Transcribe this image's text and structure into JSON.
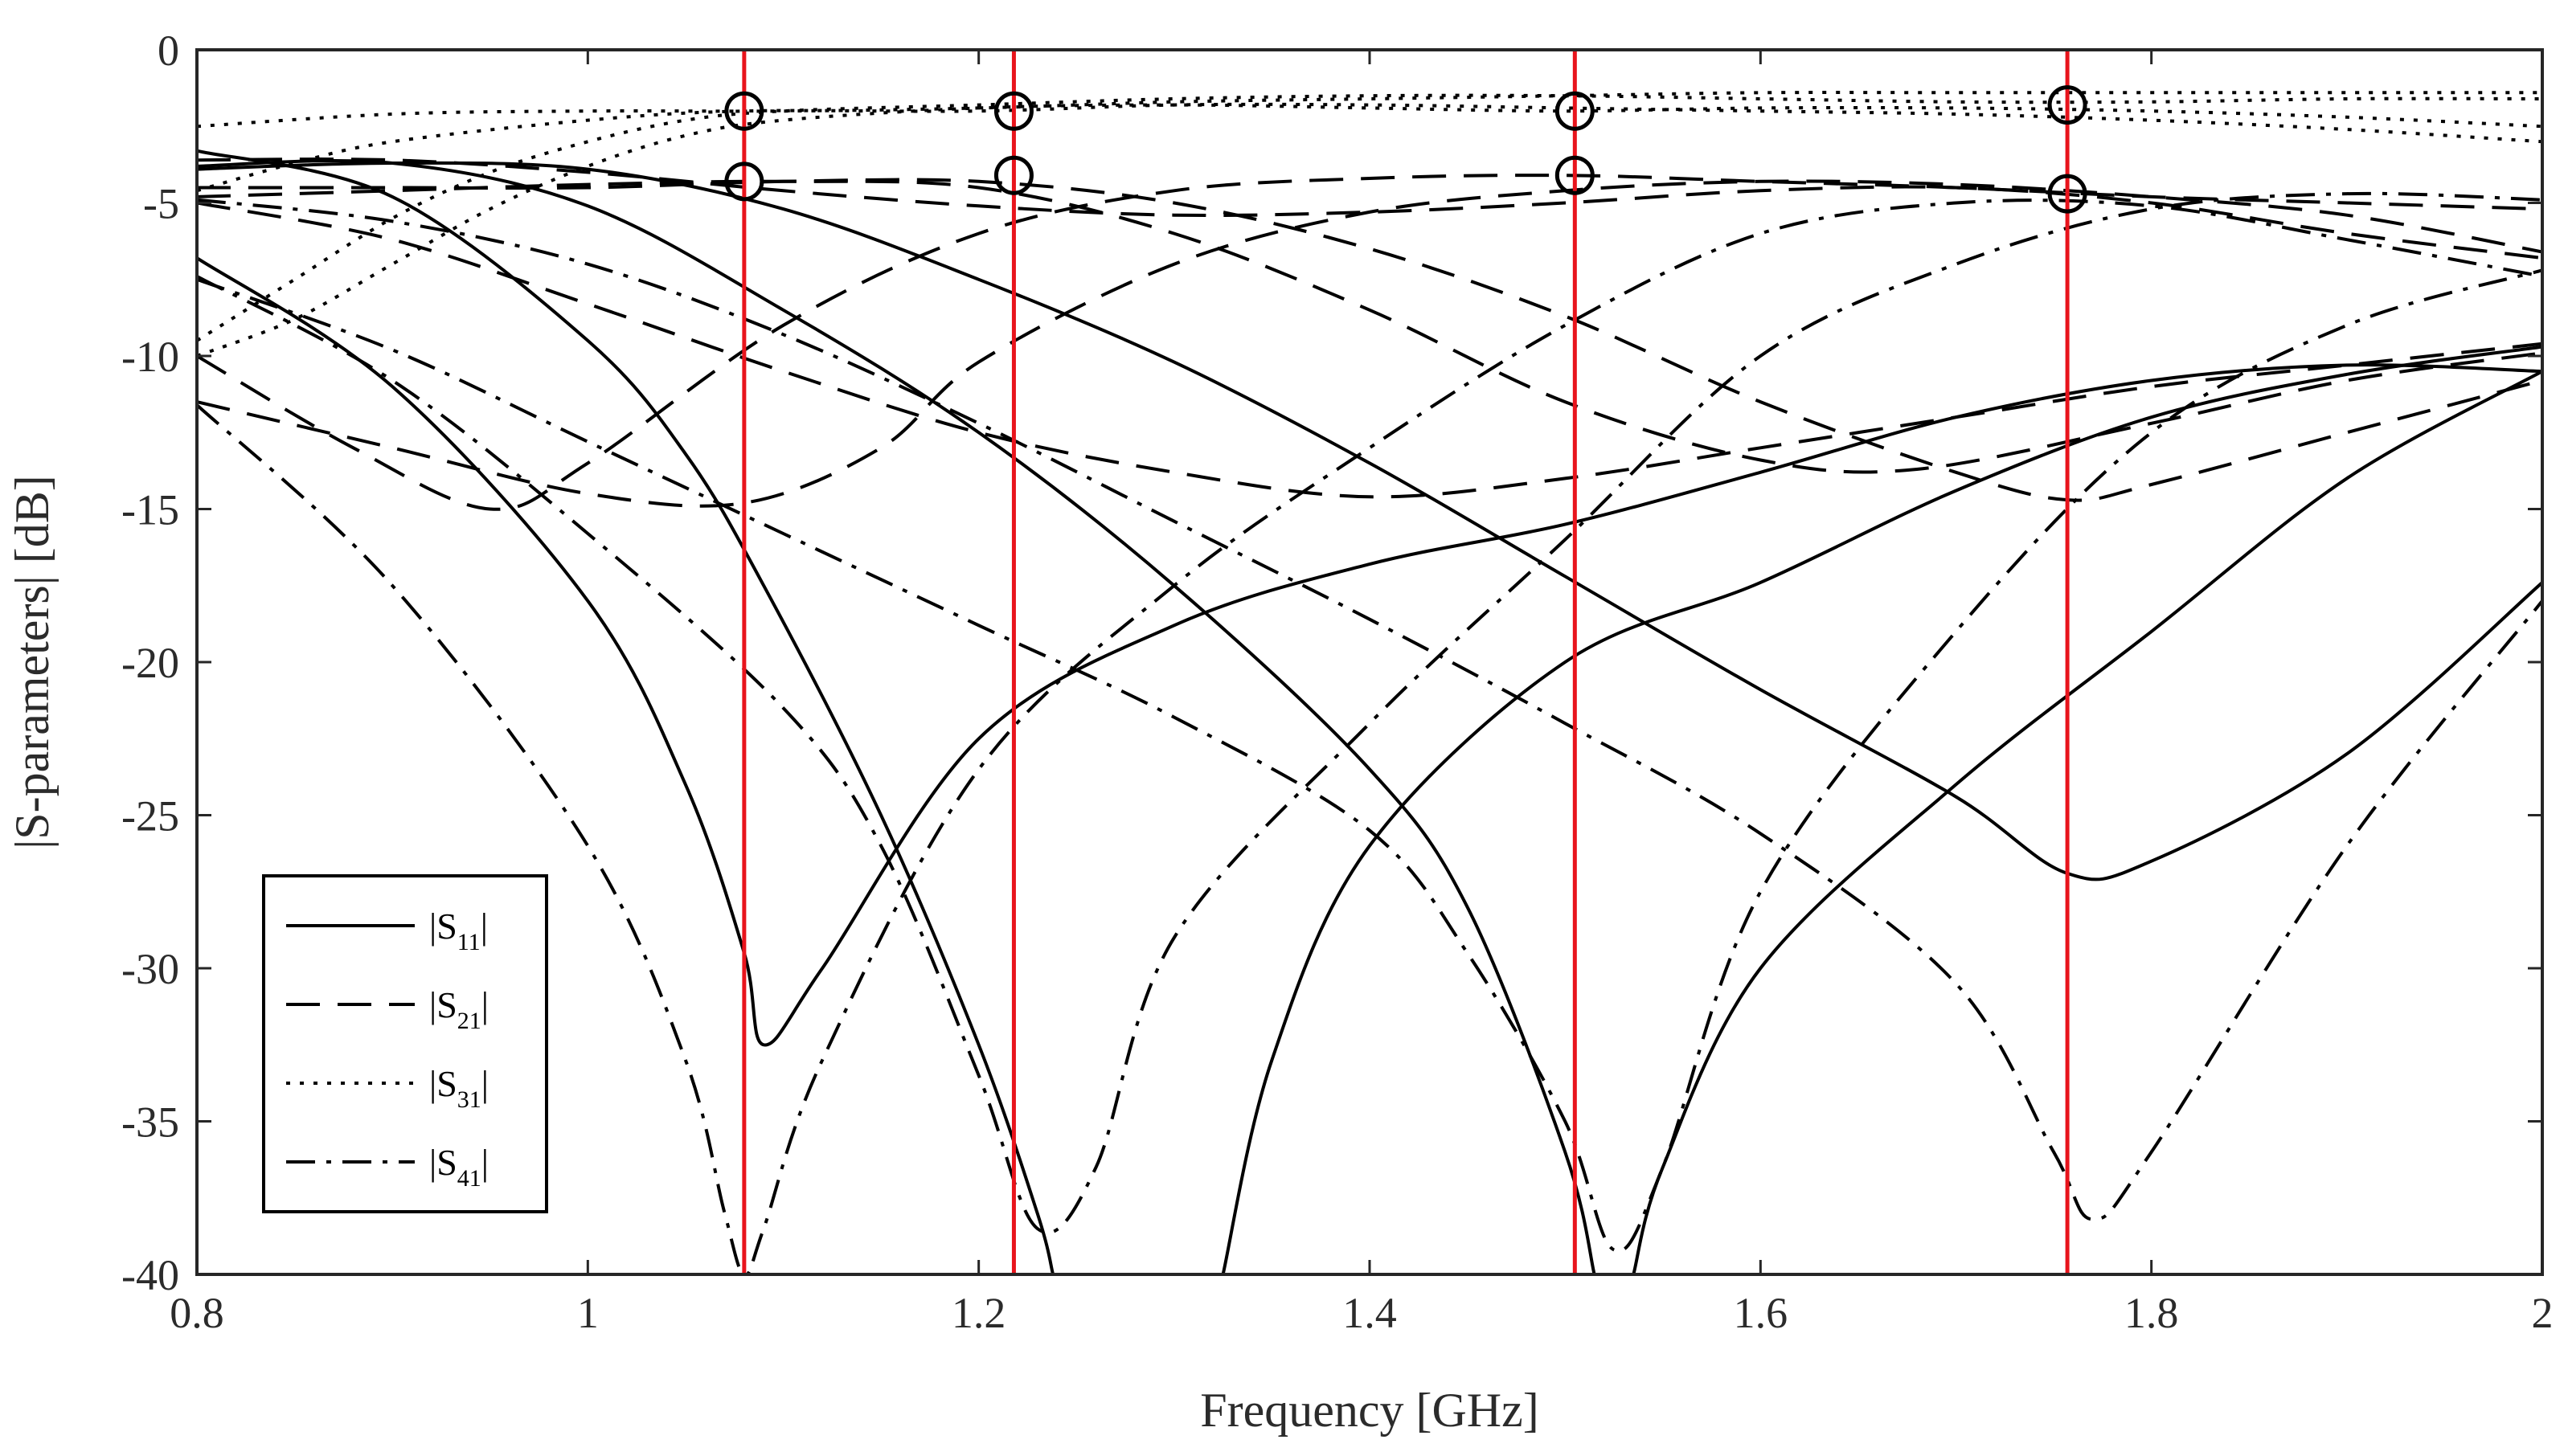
{
  "chart_data": {
    "type": "line",
    "xlabel": "Frequency [GHz]",
    "ylabel": "|S-parameters| [dB]",
    "xlim": [
      0.8,
      2
    ],
    "ylim": [
      -40,
      0
    ],
    "xticks": [
      "0.8",
      "1",
      "1.2",
      "1.4",
      "1.6",
      "1.8",
      "2"
    ],
    "yticks": [
      "0",
      "-5",
      "-10",
      "-15",
      "-20",
      "-25",
      "-30",
      "-35",
      "-40"
    ],
    "grid": false,
    "legend": {
      "placement": "bottom-left",
      "entries": [
        {
          "prefix": "|S",
          "sub": "11",
          "suffix": "|",
          "style": "solid"
        },
        {
          "prefix": "|S",
          "sub": "21",
          "suffix": "|",
          "style": "dashed"
        },
        {
          "prefix": "|S",
          "sub": "31",
          "suffix": "|",
          "style": "dotted"
        },
        {
          "prefix": "|S",
          "sub": "41",
          "suffix": "|",
          "style": "dashdot"
        }
      ]
    },
    "markers": [
      {
        "x": 1.08,
        "y": -2.0
      },
      {
        "x": 1.08,
        "y": -4.3
      },
      {
        "x": 1.218,
        "y": -2.0
      },
      {
        "x": 1.218,
        "y": -4.1
      },
      {
        "x": 1.505,
        "y": -2.0
      },
      {
        "x": 1.505,
        "y": -4.1
      },
      {
        "x": 1.757,
        "y": -1.8
      },
      {
        "x": 1.757,
        "y": -4.7
      }
    ],
    "vlines": [
      1.08,
      1.218,
      1.505,
      1.757
    ],
    "colors": {
      "curves": "#000000",
      "vlines": "#e8141c",
      "axes": "#262626"
    },
    "series": [
      {
        "style": "solid",
        "group": "S11",
        "points": [
          [
            0.8,
            -3.3
          ],
          [
            0.9,
            -4.8
          ],
          [
            1.0,
            -9.5
          ],
          [
            1.05,
            -13.2
          ],
          [
            1.09,
            -17.5
          ],
          [
            1.15,
            -25.0
          ],
          [
            1.2,
            -32.5
          ],
          [
            1.23,
            -38.0
          ],
          [
            1.238,
            -40.0
          ]
        ]
      },
      {
        "style": "solid",
        "group": "S11",
        "points": [
          [
            0.8,
            -3.8
          ],
          [
            0.9,
            -3.7
          ],
          [
            1.0,
            -5.1
          ],
          [
            1.1,
            -8.5
          ],
          [
            1.2,
            -12.5
          ],
          [
            1.3,
            -17.5
          ],
          [
            1.4,
            -23.5
          ],
          [
            1.45,
            -28.0
          ],
          [
            1.5,
            -36.0
          ],
          [
            1.515,
            -40.0
          ]
        ]
      },
      {
        "style": "solid",
        "group": "S11",
        "points": [
          [
            0.8,
            -3.9
          ],
          [
            0.9,
            -3.7
          ],
          [
            1.0,
            -3.9
          ],
          [
            1.1,
            -5.2
          ],
          [
            1.2,
            -7.5
          ],
          [
            1.3,
            -10.2
          ],
          [
            1.4,
            -13.5
          ],
          [
            1.5,
            -17.2
          ],
          [
            1.6,
            -20.9
          ],
          [
            1.7,
            -24.4
          ],
          [
            1.757,
            -26.9
          ],
          [
            1.8,
            -26.5
          ],
          [
            1.9,
            -23.0
          ],
          [
            2.0,
            -17.4
          ]
        ]
      },
      {
        "style": "solid",
        "group": "S11",
        "points": [
          [
            0.8,
            -6.8
          ],
          [
            0.9,
            -11.0
          ],
          [
            1.0,
            -18.0
          ],
          [
            1.05,
            -24.0
          ],
          [
            1.08,
            -29.5
          ],
          [
            1.09,
            -32.5
          ],
          [
            1.12,
            -30.0
          ],
          [
            1.2,
            -22.5
          ],
          [
            1.3,
            -18.8
          ],
          [
            1.4,
            -16.8
          ],
          [
            1.5,
            -15.5
          ],
          [
            1.6,
            -13.8
          ],
          [
            1.7,
            -12.0
          ],
          [
            1.8,
            -10.8
          ],
          [
            1.9,
            -10.3
          ],
          [
            2.0,
            -10.5
          ]
        ]
      },
      {
        "style": "solid",
        "group": "S11",
        "points": [
          [
            1.535,
            -40.0
          ],
          [
            1.55,
            -36.5
          ],
          [
            1.6,
            -30.0
          ],
          [
            1.7,
            -24.0
          ],
          [
            1.8,
            -19.0
          ],
          [
            1.9,
            -14.0
          ],
          [
            2.0,
            -10.5
          ]
        ]
      },
      {
        "style": "solid",
        "group": "S11",
        "points": [
          [
            1.325,
            -40.0
          ],
          [
            1.35,
            -33.0
          ],
          [
            1.4,
            -26.0
          ],
          [
            1.5,
            -20.0
          ],
          [
            1.6,
            -17.4
          ],
          [
            1.7,
            -14.4
          ],
          [
            1.8,
            -12.0
          ],
          [
            1.9,
            -10.6
          ],
          [
            2.0,
            -9.7
          ]
        ]
      },
      {
        "style": "dashed",
        "group": "S21",
        "points": [
          [
            0.8,
            -10.0
          ],
          [
            0.88,
            -13.0
          ],
          [
            0.95,
            -15.0
          ],
          [
            1.0,
            -13.5
          ],
          [
            1.1,
            -9.0
          ],
          [
            1.2,
            -6.0
          ],
          [
            1.3,
            -4.6
          ],
          [
            1.4,
            -4.2
          ],
          [
            1.5,
            -4.1
          ],
          [
            1.6,
            -4.3
          ],
          [
            1.7,
            -4.5
          ],
          [
            1.8,
            -4.8
          ],
          [
            1.9,
            -5.0
          ],
          [
            2.0,
            -5.2
          ]
        ]
      },
      {
        "style": "dashed",
        "group": "S21",
        "points": [
          [
            0.8,
            -11.5
          ],
          [
            0.9,
            -13.0
          ],
          [
            1.0,
            -14.5
          ],
          [
            1.08,
            -14.8
          ],
          [
            1.15,
            -13.0
          ],
          [
            1.2,
            -10.2
          ],
          [
            1.3,
            -7.0
          ],
          [
            1.4,
            -5.3
          ],
          [
            1.5,
            -4.6
          ],
          [
            1.6,
            -4.3
          ],
          [
            1.7,
            -4.4
          ],
          [
            1.8,
            -4.8
          ],
          [
            1.9,
            -5.4
          ],
          [
            2.0,
            -6.6
          ]
        ]
      },
      {
        "style": "dashed",
        "group": "S21",
        "points": [
          [
            0.8,
            -5.0
          ],
          [
            0.9,
            -6.2
          ],
          [
            1.0,
            -8.3
          ],
          [
            1.1,
            -10.5
          ],
          [
            1.2,
            -12.5
          ],
          [
            1.3,
            -13.8
          ],
          [
            1.4,
            -14.6
          ],
          [
            1.5,
            -14.0
          ],
          [
            1.6,
            -13.0
          ],
          [
            1.7,
            -12.0
          ],
          [
            1.8,
            -11.0
          ],
          [
            1.9,
            -10.3
          ],
          [
            2.0,
            -9.6
          ]
        ]
      },
      {
        "style": "dashed",
        "group": "S21",
        "points": [
          [
            0.8,
            -4.5
          ],
          [
            0.9,
            -4.5
          ],
          [
            1.0,
            -4.5
          ],
          [
            1.1,
            -4.3
          ],
          [
            1.2,
            -4.3
          ],
          [
            1.3,
            -5.0
          ],
          [
            1.4,
            -6.5
          ],
          [
            1.5,
            -8.7
          ],
          [
            1.6,
            -11.5
          ],
          [
            1.7,
            -13.8
          ],
          [
            1.757,
            -14.7
          ],
          [
            1.8,
            -14.2
          ],
          [
            1.9,
            -12.5
          ],
          [
            2.0,
            -10.8
          ]
        ]
      },
      {
        "style": "dashed",
        "group": "S21",
        "points": [
          [
            0.8,
            -4.8
          ],
          [
            0.9,
            -4.6
          ],
          [
            1.0,
            -4.4
          ],
          [
            1.1,
            -4.3
          ],
          [
            1.2,
            -4.5
          ],
          [
            1.3,
            -6.0
          ],
          [
            1.4,
            -8.5
          ],
          [
            1.5,
            -11.5
          ],
          [
            1.6,
            -13.4
          ],
          [
            1.68,
            -13.7
          ],
          [
            1.8,
            -12.2
          ],
          [
            1.9,
            -10.8
          ],
          [
            2.0,
            -9.9
          ]
        ]
      },
      {
        "style": "dashed",
        "group": "S21",
        "points": [
          [
            0.8,
            -3.6
          ],
          [
            0.9,
            -3.6
          ],
          [
            1.0,
            -4.0
          ],
          [
            1.1,
            -4.6
          ],
          [
            1.2,
            -5.1
          ],
          [
            1.3,
            -5.4
          ],
          [
            1.4,
            -5.3
          ],
          [
            1.5,
            -5.0
          ],
          [
            1.6,
            -4.6
          ],
          [
            1.7,
            -4.5
          ],
          [
            1.8,
            -5.0
          ],
          [
            1.9,
            -6.0
          ],
          [
            2.0,
            -6.8
          ]
        ]
      },
      {
        "style": "dotted",
        "group": "S31",
        "points": [
          [
            0.8,
            -2.5
          ],
          [
            0.9,
            -2.1
          ],
          [
            1.0,
            -2.0
          ],
          [
            1.1,
            -2.0
          ],
          [
            1.2,
            -1.9
          ],
          [
            1.3,
            -1.7
          ],
          [
            1.4,
            -1.6
          ],
          [
            1.5,
            -1.5
          ],
          [
            1.6,
            -1.4
          ],
          [
            1.7,
            -1.4
          ],
          [
            1.8,
            -1.4
          ],
          [
            1.9,
            -1.4
          ],
          [
            2.0,
            -1.4
          ]
        ]
      },
      {
        "style": "dotted",
        "group": "S31",
        "points": [
          [
            0.8,
            -9.5
          ],
          [
            0.85,
            -7.5
          ],
          [
            0.9,
            -5.5
          ],
          [
            0.95,
            -4.0
          ],
          [
            1.0,
            -3.0
          ],
          [
            1.05,
            -2.3
          ],
          [
            1.1,
            -2.0
          ],
          [
            1.2,
            -1.8
          ],
          [
            1.3,
            -1.6
          ],
          [
            1.4,
            -1.5
          ],
          [
            1.5,
            -1.5
          ],
          [
            1.6,
            -1.6
          ],
          [
            1.7,
            -1.7
          ],
          [
            1.8,
            -1.7
          ],
          [
            1.9,
            -1.6
          ],
          [
            2.0,
            -1.6
          ]
        ]
      },
      {
        "style": "dotted",
        "group": "S31",
        "points": [
          [
            0.8,
            -4.6
          ],
          [
            0.85,
            -3.7
          ],
          [
            0.9,
            -3.0
          ],
          [
            1.0,
            -2.3
          ],
          [
            1.08,
            -2.0
          ],
          [
            1.2,
            -2.0
          ],
          [
            1.3,
            -1.8
          ],
          [
            1.4,
            -1.8
          ],
          [
            1.5,
            -1.9
          ],
          [
            1.6,
            -2.0
          ],
          [
            1.7,
            -2.1
          ],
          [
            1.8,
            -2.3
          ],
          [
            1.9,
            -2.6
          ],
          [
            2.0,
            -3.0
          ]
        ]
      },
      {
        "style": "dotted",
        "group": "S31",
        "points": [
          [
            0.8,
            -10.0
          ],
          [
            0.85,
            -8.8
          ],
          [
            0.9,
            -7.0
          ],
          [
            0.95,
            -5.2
          ],
          [
            1.0,
            -3.8
          ],
          [
            1.05,
            -2.8
          ],
          [
            1.1,
            -2.3
          ],
          [
            1.2,
            -1.9
          ],
          [
            1.3,
            -1.8
          ],
          [
            1.4,
            -1.9
          ],
          [
            1.5,
            -2.0
          ],
          [
            1.6,
            -1.9
          ],
          [
            1.7,
            -1.9
          ],
          [
            1.8,
            -2.0
          ],
          [
            1.9,
            -2.2
          ],
          [
            2.0,
            -2.5
          ]
        ]
      },
      {
        "style": "dashdot",
        "group": "S41",
        "points": [
          [
            0.8,
            -4.9
          ],
          [
            0.9,
            -5.6
          ],
          [
            1.0,
            -7.0
          ],
          [
            1.1,
            -9.3
          ],
          [
            1.2,
            -12.2
          ],
          [
            1.3,
            -15.4
          ],
          [
            1.4,
            -18.6
          ],
          [
            1.5,
            -22.0
          ],
          [
            1.6,
            -25.6
          ],
          [
            1.7,
            -30.5
          ],
          [
            1.75,
            -36.0
          ],
          [
            1.77,
            -38.2
          ],
          [
            1.8,
            -36.0
          ],
          [
            1.9,
            -26.0
          ],
          [
            2.0,
            -18.0
          ]
        ]
      },
      {
        "style": "dashdot",
        "group": "S41",
        "points": [
          [
            0.8,
            -7.4
          ],
          [
            0.9,
            -10.8
          ],
          [
            1.0,
            -15.8
          ],
          [
            1.1,
            -21.5
          ],
          [
            1.15,
            -26.0
          ],
          [
            1.2,
            -33.5
          ],
          [
            1.23,
            -38.5
          ],
          [
            1.26,
            -36.5
          ],
          [
            1.3,
            -29.0
          ],
          [
            1.4,
            -22.0
          ],
          [
            1.5,
            -16.0
          ],
          [
            1.6,
            -10.0
          ],
          [
            1.7,
            -7.0
          ],
          [
            1.8,
            -5.2
          ],
          [
            1.9,
            -4.7
          ],
          [
            2.0,
            -4.9
          ]
        ]
      },
      {
        "style": "dashdot",
        "group": "S41",
        "points": [
          [
            0.8,
            -11.6
          ],
          [
            0.9,
            -17.5
          ],
          [
            1.0,
            -26.0
          ],
          [
            1.05,
            -33.0
          ],
          [
            1.07,
            -38.0
          ],
          [
            1.08,
            -40.0
          ],
          [
            1.09,
            -38.5
          ],
          [
            1.12,
            -33.0
          ],
          [
            1.2,
            -23.5
          ],
          [
            1.3,
            -17.5
          ],
          [
            1.4,
            -13.0
          ],
          [
            1.5,
            -9.0
          ],
          [
            1.6,
            -6.0
          ],
          [
            1.7,
            -5.0
          ],
          [
            1.8,
            -5.1
          ],
          [
            1.9,
            -6.2
          ],
          [
            2.0,
            -7.4
          ]
        ]
      },
      {
        "style": "dashdot",
        "group": "S41",
        "points": [
          [
            0.8,
            -7.5
          ],
          [
            0.9,
            -9.8
          ],
          [
            1.0,
            -12.8
          ],
          [
            1.1,
            -15.8
          ],
          [
            1.2,
            -18.8
          ],
          [
            1.3,
            -21.8
          ],
          [
            1.4,
            -25.5
          ],
          [
            1.45,
            -29.5
          ],
          [
            1.5,
            -35.0
          ],
          [
            1.525,
            -39.2
          ],
          [
            1.55,
            -36.5
          ],
          [
            1.6,
            -27.5
          ],
          [
            1.7,
            -19.0
          ],
          [
            1.8,
            -12.5
          ],
          [
            1.9,
            -9.0
          ],
          [
            2.0,
            -7.2
          ]
        ]
      }
    ]
  }
}
